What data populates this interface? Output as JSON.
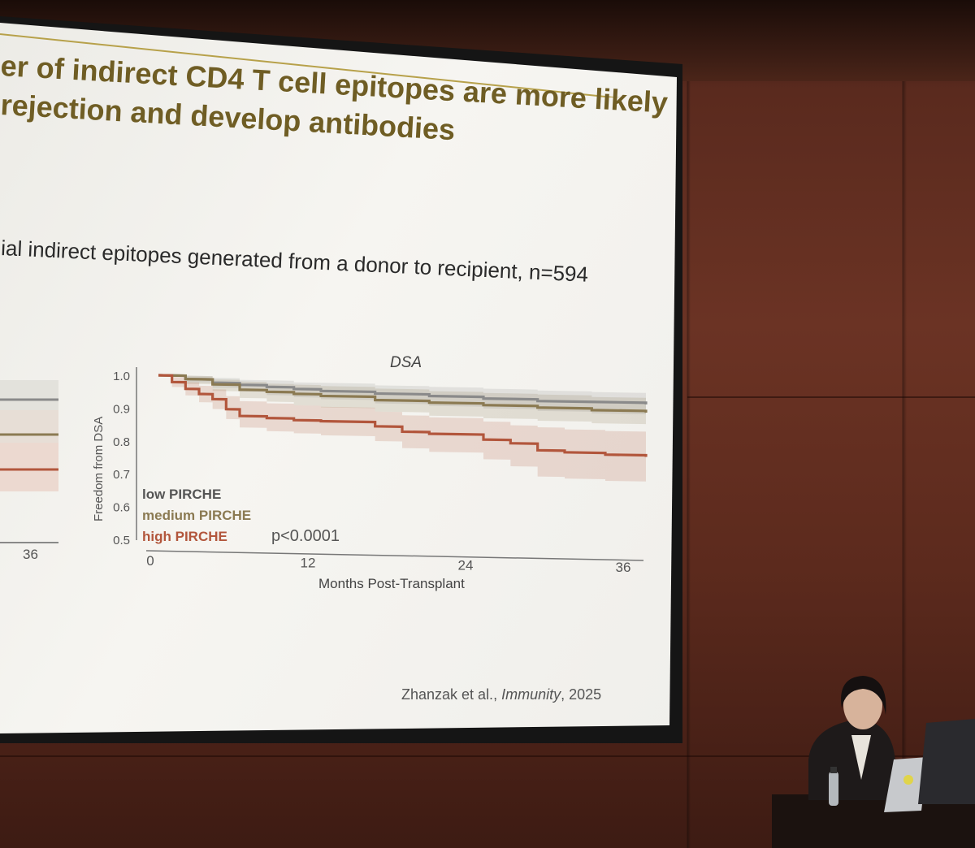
{
  "slide": {
    "title_line1": "er of indirect CD4 T cell epitopes are more likely",
    "title_line2": "rejection and develop antibodies",
    "subtitle": "ial indirect epitopes generated from a donor to recipient, n=594",
    "citation_authors": "Zhanzak et al., ",
    "citation_journal": "Immunity",
    "citation_year": ", 2025",
    "left_chart_tick": "36"
  },
  "chart_data": {
    "type": "line",
    "title": "DSA",
    "xlabel": "Months Post-Transplant",
    "ylabel": "Freedom from DSA",
    "xlim": [
      0,
      36
    ],
    "ylim": [
      0.5,
      1.0
    ],
    "x_ticks": [
      "0",
      "12",
      "24",
      "36"
    ],
    "y_ticks": [
      "0.5",
      "0.6",
      "0.7",
      "0.8",
      "0.9",
      "1.0"
    ],
    "annotation": "p<0.0001",
    "legend": {
      "placement": "bottom-left",
      "entries": [
        "low PIRCHE",
        "medium PIRCHE",
        "high PIRCHE"
      ]
    },
    "series": [
      {
        "name": "low PIRCHE",
        "color": "#8a8a8a",
        "x": [
          0,
          2,
          4,
          6,
          8,
          10,
          12,
          16,
          20,
          24,
          28,
          32,
          36
        ],
        "y": [
          1.0,
          0.99,
          0.98,
          0.975,
          0.97,
          0.965,
          0.96,
          0.955,
          0.95,
          0.945,
          0.94,
          0.94,
          0.935
        ],
        "ci_low": [
          1.0,
          0.98,
          0.965,
          0.955,
          0.945,
          0.94,
          0.935,
          0.925,
          0.92,
          0.915,
          0.91,
          0.905,
          0.9
        ],
        "ci_high": [
          1.0,
          1.0,
          0.995,
          0.99,
          0.99,
          0.985,
          0.985,
          0.98,
          0.978,
          0.975,
          0.972,
          0.97,
          0.968
        ]
      },
      {
        "name": "medium PIRCHE",
        "color": "#8b7a52",
        "x": [
          0,
          2,
          4,
          6,
          8,
          10,
          12,
          16,
          20,
          24,
          28,
          32,
          36
        ],
        "y": [
          1.0,
          0.99,
          0.975,
          0.96,
          0.955,
          0.95,
          0.945,
          0.935,
          0.93,
          0.925,
          0.92,
          0.915,
          0.91
        ],
        "ci_low": [
          1.0,
          0.975,
          0.955,
          0.935,
          0.925,
          0.915,
          0.91,
          0.9,
          0.89,
          0.885,
          0.88,
          0.875,
          0.87
        ],
        "ci_high": [
          1.0,
          1.0,
          0.99,
          0.985,
          0.98,
          0.978,
          0.975,
          0.97,
          0.965,
          0.962,
          0.96,
          0.955,
          0.95
        ]
      },
      {
        "name": "high PIRCHE",
        "color": "#b2563c",
        "x": [
          0,
          1,
          2,
          3,
          4,
          5,
          6,
          8,
          10,
          12,
          16,
          18,
          20,
          24,
          26,
          28,
          30,
          33,
          36
        ],
        "y": [
          1.0,
          0.98,
          0.96,
          0.945,
          0.93,
          0.9,
          0.88,
          0.875,
          0.87,
          0.868,
          0.855,
          0.84,
          0.835,
          0.82,
          0.81,
          0.79,
          0.785,
          0.78,
          0.775
        ],
        "ci_low": [
          1.0,
          0.965,
          0.94,
          0.92,
          0.9,
          0.87,
          0.845,
          0.835,
          0.83,
          0.825,
          0.81,
          0.79,
          0.78,
          0.76,
          0.74,
          0.71,
          0.705,
          0.7,
          0.695
        ],
        "ci_high": [
          1.0,
          0.995,
          0.98,
          0.97,
          0.96,
          0.94,
          0.925,
          0.92,
          0.915,
          0.912,
          0.9,
          0.89,
          0.885,
          0.875,
          0.865,
          0.86,
          0.855,
          0.852,
          0.85
        ]
      }
    ]
  }
}
